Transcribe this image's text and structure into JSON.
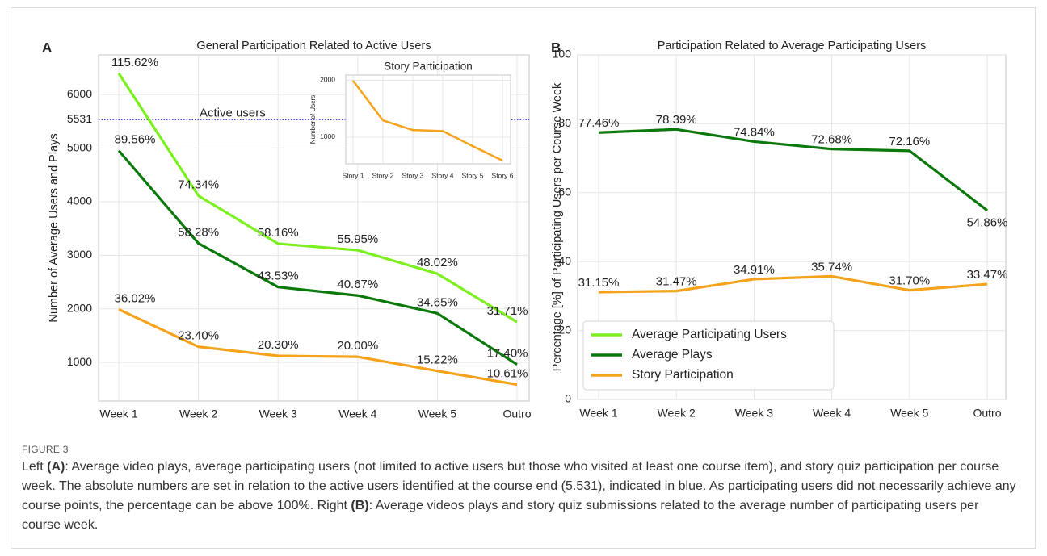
{
  "chart_data": [
    {
      "type": "line",
      "panel": "A",
      "title": "General Participation Related to Active Users",
      "ylabel": "Number of Average Users and Plays",
      "categories": [
        "Week 1",
        "Week 2",
        "Week 3",
        "Week 4",
        "Week 5",
        "Outro"
      ],
      "ylim": [
        280,
        6740
      ],
      "yticks": [
        1000,
        2000,
        3000,
        4000,
        5000,
        6000
      ],
      "grid": true,
      "reference_line": {
        "value": 5531,
        "label": "Active users",
        "color": "#2626d9"
      },
      "annotation_color": "#1a1acc",
      "series": [
        {
          "color": "#7cf01e",
          "values": [
            6395,
            4112,
            3217,
            3095,
            2656,
            1754
          ],
          "annotations": [
            "115.62%",
            "74.34%",
            "58.16%",
            "55.95%",
            "48.02%",
            "31.71%"
          ]
        },
        {
          "color": "#0b780b",
          "values": [
            4954,
            3223,
            2408,
            2249,
            1917,
            962
          ],
          "annotations": [
            "89.56%",
            "58.28%",
            "43.53%",
            "40.67%",
            "34.65%",
            "17.40%"
          ]
        },
        {
          "color": "#f5a31c",
          "values": [
            1992,
            1294,
            1123,
            1106,
            842,
            587
          ],
          "annotations": [
            "36.02%",
            "23.40%",
            "20.30%",
            "20.00%",
            "15.22%",
            "10.61%"
          ]
        }
      ]
    },
    {
      "type": "line",
      "title": "Story Participation",
      "ylabel": "Number of Users",
      "categories": [
        "Story 1",
        "Story 2",
        "Story 3",
        "Story 4",
        "Story 5",
        "Story 6"
      ],
      "values": [
        1992,
        1294,
        1123,
        1106,
        842,
        587
      ],
      "color": "#f5a31c",
      "ylim": [
        530,
        2090
      ],
      "yticks": [
        1000,
        2000
      ],
      "grid": true
    },
    {
      "type": "line",
      "panel": "B",
      "title": "Participation Related to Average Participating Users",
      "ylabel": "Percentage [%] of Participating Users per Course Week",
      "categories": [
        "Week 1",
        "Week 2",
        "Week 3",
        "Week 4",
        "Week 5",
        "Outro"
      ],
      "ylim": [
        0,
        100
      ],
      "yticks": [
        0,
        20,
        40,
        60,
        80,
        100
      ],
      "grid": true,
      "series": [
        {
          "color": "#0b780b",
          "values": [
            77.46,
            78.39,
            74.84,
            72.68,
            72.16,
            54.86
          ],
          "value_labels": [
            "77.46%",
            "78.39%",
            "74.84%",
            "72.68%",
            "72.16%",
            "54.86%"
          ]
        },
        {
          "color": "#f5a31c",
          "values": [
            31.15,
            31.47,
            34.91,
            35.74,
            31.7,
            33.47
          ],
          "value_labels": [
            "31.15%",
            "31.47%",
            "34.91%",
            "35.74%",
            "31.70%",
            "33.47%"
          ]
        }
      ],
      "legend": {
        "position": "lower left",
        "entries": [
          {
            "name": "Average Participating Users",
            "color": "#7cf01e"
          },
          {
            "name": "Average Plays",
            "color": "#0b780b"
          },
          {
            "name": "Story Participation",
            "color": "#f5a31c"
          }
        ]
      }
    }
  ],
  "caption": {
    "label": "FIGURE 3",
    "segments": [
      "Left ",
      "(A)",
      ": Average video plays, average participating users (not limited to active users but those who visited at least one course item), and story quiz participation per course week. The absolute numbers are set in relation to the active users identified at the course end (5.531), indicated in blue. As participating users did not necessarily achieve any course points, the percentage can be above 100%. Right ",
      "(B)",
      ": Average videos plays and story quiz submissions related to the average number of participating users per course week."
    ]
  }
}
